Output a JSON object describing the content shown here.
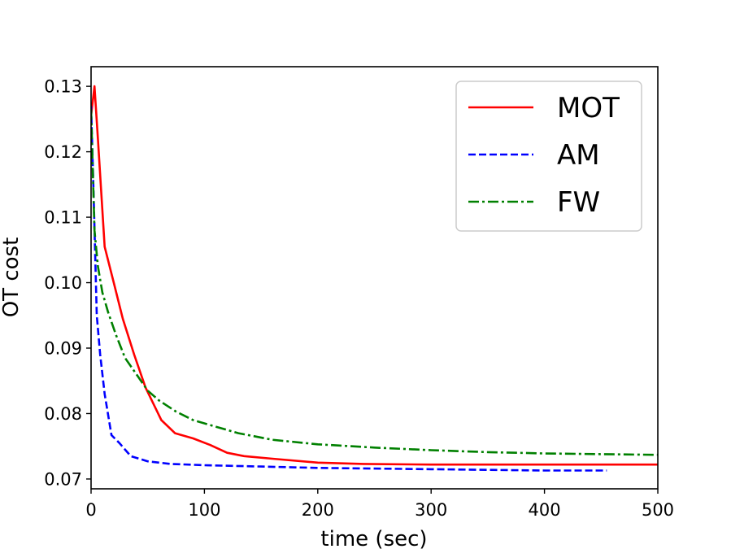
{
  "chart_data": {
    "type": "line",
    "title": "",
    "xlabel": "time (sec)",
    "ylabel": "OT cost",
    "xlim": [
      0,
      500
    ],
    "ylim": [
      0.0685,
      0.133
    ],
    "xticks": [
      0,
      100,
      200,
      300,
      400,
      500
    ],
    "xtick_labels": [
      "0",
      "100",
      "200",
      "300",
      "400",
      "500"
    ],
    "yticks": [
      0.07,
      0.08,
      0.09,
      0.1,
      0.11,
      0.12,
      0.13
    ],
    "ytick_labels": [
      "0.07",
      "0.08",
      "0.09",
      "0.10",
      "0.11",
      "0.12",
      "0.13"
    ],
    "grid": false,
    "legend_position": "top-right",
    "series": [
      {
        "name": "MOT",
        "color": "#ff0000",
        "dash": "solid",
        "x": [
          0,
          3,
          6,
          12,
          20,
          28,
          38,
          48,
          62,
          74,
          90,
          105,
          120,
          135,
          160,
          200,
          240,
          300,
          400,
          500
        ],
        "y": [
          0.1255,
          0.13,
          0.122,
          0.1055,
          0.1,
          0.0945,
          0.089,
          0.084,
          0.079,
          0.077,
          0.0762,
          0.0752,
          0.074,
          0.0735,
          0.0731,
          0.0725,
          0.0723,
          0.0722,
          0.0722,
          0.0722
        ]
      },
      {
        "name": "AM",
        "color": "#0000ff",
        "dash": "dashed",
        "x": [
          0,
          2,
          5,
          8,
          12,
          18,
          25,
          35,
          50,
          70,
          100,
          150,
          200,
          300,
          400,
          455
        ],
        "y": [
          0.127,
          0.115,
          0.095,
          0.089,
          0.083,
          0.0767,
          0.0755,
          0.0735,
          0.0727,
          0.0723,
          0.0721,
          0.0719,
          0.0717,
          0.0715,
          0.0713,
          0.0713
        ]
      },
      {
        "name": "FW",
        "color": "#008000",
        "dash": "dashdot",
        "x": [
          0,
          3,
          6,
          10,
          15,
          22,
          30,
          40,
          50,
          60,
          75,
          90,
          110,
          130,
          160,
          200,
          250,
          300,
          350,
          400,
          450,
          500
        ],
        "y": [
          0.1265,
          0.108,
          0.1025,
          0.0985,
          0.0955,
          0.092,
          0.0885,
          0.086,
          0.0835,
          0.082,
          0.0803,
          0.079,
          0.078,
          0.077,
          0.076,
          0.0753,
          0.0748,
          0.0744,
          0.0741,
          0.0739,
          0.0738,
          0.0737
        ]
      }
    ]
  }
}
